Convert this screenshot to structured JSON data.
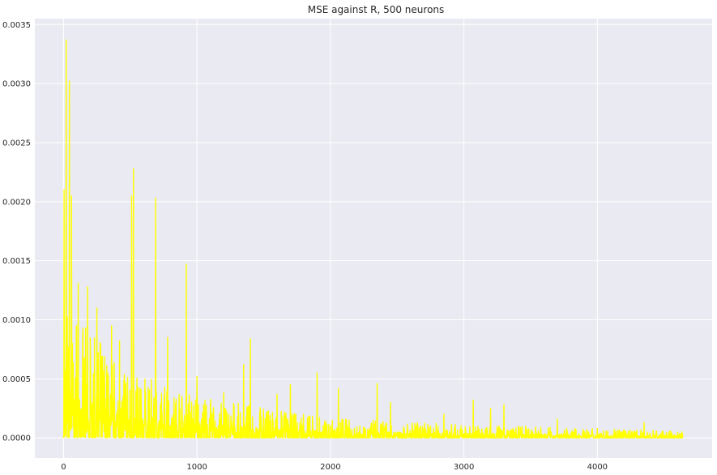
{
  "chart_data": {
    "type": "line",
    "title": "MSE against R,  500 neurons",
    "xlabel": "",
    "ylabel": "",
    "xlim": [
      -215,
      4860
    ],
    "ylim": [
      -0.00017,
      0.00355
    ],
    "x_ticks": [
      0,
      1000,
      2000,
      3000,
      4000
    ],
    "x_tick_labels": [
      "0",
      "1000",
      "2000",
      "3000",
      "4000"
    ],
    "y_ticks": [
      0.0,
      0.0005,
      0.001,
      0.0015,
      0.002,
      0.0025,
      0.003,
      0.0035
    ],
    "y_tick_labels": [
      "0.0000",
      "0.0005",
      "0.0010",
      "0.0015",
      "0.0020",
      "0.0025",
      "0.0030",
      "0.0035"
    ],
    "grid": true,
    "background_color": "#eaeaf2",
    "grid_color": "#ffffff",
    "series": [
      {
        "name": "",
        "color": "#ffff00",
        "x_range": [
          0,
          4640
        ],
        "peaks": [
          {
            "x": 5,
            "y": 0.0021
          },
          {
            "x": 20,
            "y": 0.00337
          },
          {
            "x": 45,
            "y": 0.00302
          },
          {
            "x": 60,
            "y": 0.00205
          },
          {
            "x": 110,
            "y": 0.00131
          },
          {
            "x": 180,
            "y": 0.00128
          },
          {
            "x": 250,
            "y": 0.0011
          },
          {
            "x": 360,
            "y": 0.00095
          },
          {
            "x": 420,
            "y": 0.00082
          },
          {
            "x": 510,
            "y": 0.00205
          },
          {
            "x": 525,
            "y": 0.00228
          },
          {
            "x": 690,
            "y": 0.00203
          },
          {
            "x": 780,
            "y": 0.00085
          },
          {
            "x": 920,
            "y": 0.00147
          },
          {
            "x": 1000,
            "y": 0.00052
          },
          {
            "x": 1200,
            "y": 0.00038
          },
          {
            "x": 1350,
            "y": 0.00062
          },
          {
            "x": 1400,
            "y": 0.00084
          },
          {
            "x": 1600,
            "y": 0.00037
          },
          {
            "x": 1700,
            "y": 0.00045
          },
          {
            "x": 1900,
            "y": 0.00055
          },
          {
            "x": 2060,
            "y": 0.00042
          },
          {
            "x": 2350,
            "y": 0.00046
          },
          {
            "x": 2450,
            "y": 0.0003
          },
          {
            "x": 2850,
            "y": 0.0002
          },
          {
            "x": 3070,
            "y": 0.00032
          },
          {
            "x": 3200,
            "y": 0.00025
          },
          {
            "x": 3300,
            "y": 0.00028
          },
          {
            "x": 3700,
            "y": 0.00016
          },
          {
            "x": 4000,
            "y": 8e-05
          },
          {
            "x": 4350,
            "y": 0.00013
          },
          {
            "x": 4640,
            "y": 3e-05
          }
        ],
        "decay_levels": [
          {
            "x": 0,
            "y": 0.0008
          },
          {
            "x": 500,
            "y": 0.0004
          },
          {
            "x": 1000,
            "y": 0.00025
          },
          {
            "x": 2000,
            "y": 0.00012
          },
          {
            "x": 3000,
            "y": 8e-05
          },
          {
            "x": 4640,
            "y": 4e-05
          }
        ]
      }
    ]
  }
}
